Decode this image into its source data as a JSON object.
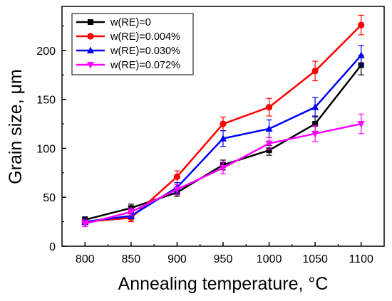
{
  "chart_data": {
    "type": "line",
    "title": "",
    "xlabel": "Annealing temperature, °C",
    "ylabel": "Grain size, μm",
    "categories": [
      "800",
      "850",
      "900",
      "950",
      "1000",
      "1050",
      "1100"
    ],
    "xlim": [
      775,
      1125
    ],
    "ylim": [
      0,
      245
    ],
    "yticks": [
      "0",
      "50",
      "100",
      "150",
      "200"
    ],
    "grid": false,
    "legend": "top-left",
    "series": [
      {
        "name": "w(RE)=0",
        "color": "#000000",
        "marker": "square",
        "values": [
          27,
          39,
          55,
          83,
          98,
          125,
          185
        ],
        "errors": [
          3,
          4,
          4,
          5,
          5,
          8,
          10
        ]
      },
      {
        "name": "w(RE)=0.004%",
        "color": "#ff0000",
        "marker": "circle",
        "values": [
          25,
          29,
          71,
          125,
          142,
          179,
          226
        ],
        "errors": [
          3,
          4,
          6,
          7,
          9,
          10,
          10
        ]
      },
      {
        "name": "w(RE)=0.030%",
        "color": "#0000ff",
        "marker": "triangle-up",
        "values": [
          25,
          31,
          60,
          110,
          120,
          142,
          195
        ],
        "errors": [
          3,
          3,
          5,
          8,
          9,
          10,
          10
        ]
      },
      {
        "name": "w(RE)=0.072%",
        "color": "#ff00ff",
        "marker": "triangle-down",
        "values": [
          23,
          35,
          58,
          80,
          105,
          115,
          125
        ],
        "errors": [
          3,
          4,
          5,
          6,
          6,
          8,
          10
        ]
      }
    ]
  }
}
